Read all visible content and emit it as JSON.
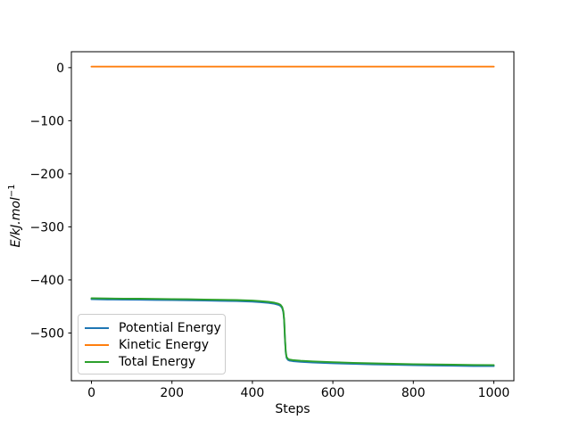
{
  "chart_data": {
    "type": "line",
    "title": "",
    "xlabel": "Steps",
    "ylabel": "E/kJ.mol⁻¹",
    "ylabel_base": "E/kJ.mol",
    "ylabel_sup": "−1",
    "xlim": [
      -50,
      1050
    ],
    "ylim": [
      -590,
      30
    ],
    "grid": false,
    "x_ticks": {
      "values": [
        0,
        200,
        400,
        600,
        800,
        1000
      ],
      "labels": [
        "0",
        "200",
        "400",
        "600",
        "800",
        "1000"
      ]
    },
    "y_ticks": {
      "values": [
        0,
        -100,
        -200,
        -300,
        -400,
        -500
      ],
      "labels": [
        "0",
        "−100",
        "−200",
        "−300",
        "−400",
        "−500"
      ]
    },
    "legend": {
      "position": "lower left",
      "items": [
        {
          "label": "Potential Energy",
          "color": "#1f77b4"
        },
        {
          "label": "Kinetic Energy",
          "color": "#ff7f0e"
        },
        {
          "label": "Total Energy",
          "color": "#2ca02c"
        }
      ]
    },
    "series": [
      {
        "name": "Potential Energy",
        "color": "#1f77b4",
        "note": "hidden beneath Total Energy line",
        "points": [
          [
            0,
            -436.5
          ],
          [
            40,
            -436.9
          ],
          [
            80,
            -437.2
          ],
          [
            120,
            -437.5
          ],
          [
            160,
            -437.8
          ],
          [
            200,
            -438.1
          ],
          [
            240,
            -438.5
          ],
          [
            280,
            -438.9
          ],
          [
            320,
            -439.4
          ],
          [
            360,
            -440.0
          ],
          [
            400,
            -441.0
          ],
          [
            420,
            -442.0
          ],
          [
            440,
            -443.3
          ],
          [
            455,
            -445.0
          ],
          [
            465,
            -447.0
          ],
          [
            470,
            -449.0
          ],
          [
            474,
            -453.0
          ],
          [
            477,
            -461.0
          ],
          [
            479,
            -477.0
          ],
          [
            481,
            -512.0
          ],
          [
            483,
            -537.0
          ],
          [
            485,
            -547.0
          ],
          [
            488,
            -550.5
          ],
          [
            492,
            -552.0
          ],
          [
            500,
            -553.0
          ],
          [
            520,
            -554.3
          ],
          [
            550,
            -555.6
          ],
          [
            600,
            -557.0
          ],
          [
            650,
            -558.2
          ],
          [
            700,
            -559.2
          ],
          [
            750,
            -560.0
          ],
          [
            800,
            -560.7
          ],
          [
            850,
            -561.3
          ],
          [
            900,
            -561.8
          ],
          [
            950,
            -562.2
          ],
          [
            1000,
            -562.5
          ]
        ]
      },
      {
        "name": "Kinetic Energy",
        "color": "#ff7f0e",
        "points": [
          [
            0,
            2
          ],
          [
            1000,
            2
          ]
        ]
      },
      {
        "name": "Total Energy",
        "color": "#2ca02c",
        "points": [
          [
            0,
            -434.5
          ],
          [
            40,
            -434.9
          ],
          [
            80,
            -435.2
          ],
          [
            120,
            -435.5
          ],
          [
            160,
            -435.8
          ],
          [
            200,
            -436.1
          ],
          [
            240,
            -436.5
          ],
          [
            280,
            -436.9
          ],
          [
            320,
            -437.4
          ],
          [
            360,
            -438.0
          ],
          [
            400,
            -439.0
          ],
          [
            420,
            -440.0
          ],
          [
            440,
            -441.3
          ],
          [
            455,
            -443.0
          ],
          [
            465,
            -445.0
          ],
          [
            470,
            -447.0
          ],
          [
            474,
            -451.0
          ],
          [
            477,
            -459.0
          ],
          [
            479,
            -475.0
          ],
          [
            481,
            -510.0
          ],
          [
            483,
            -535.0
          ],
          [
            485,
            -545.0
          ],
          [
            488,
            -548.5
          ],
          [
            492,
            -550.0
          ],
          [
            500,
            -551.0
          ],
          [
            520,
            -552.3
          ],
          [
            550,
            -553.6
          ],
          [
            600,
            -555.0
          ],
          [
            650,
            -556.2
          ],
          [
            700,
            -557.2
          ],
          [
            750,
            -558.0
          ],
          [
            800,
            -558.7
          ],
          [
            850,
            -559.3
          ],
          [
            900,
            -559.8
          ],
          [
            950,
            -560.2
          ],
          [
            1000,
            -560.5
          ]
        ]
      }
    ]
  }
}
